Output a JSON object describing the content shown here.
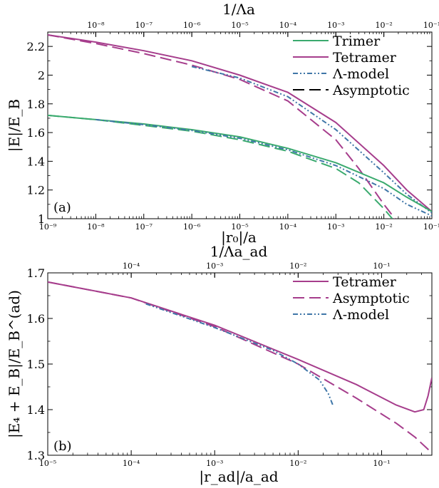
{
  "colors": {
    "trimer": "#3aaa6e",
    "tetramer": "#a63d8c",
    "lambda": "#3f76a8",
    "asymptotic": "#000000"
  },
  "chart_data": [
    {
      "type": "line",
      "panel_label": "(a)",
      "xlabel": "|r₀|/a",
      "ylabel": "|E|/E_B",
      "top_xlabel": "1/Λa",
      "xscale": "log",
      "xlim": [
        1e-09,
        0.1
      ],
      "ylim": [
        1,
        2.3
      ],
      "top_xlim": [
        1e-08,
        1
      ],
      "x_ticks": [
        "10⁻⁹",
        "10⁻⁸",
        "10⁻⁷",
        "10⁻⁶",
        "10⁻⁵",
        "10⁻⁴",
        "10⁻³",
        "10⁻²",
        "10⁻¹"
      ],
      "y_ticks": [
        "1",
        "1.2",
        "1.4",
        "1.6",
        "1.8",
        "2",
        "2.2"
      ],
      "top_ticks": [
        "10⁻⁸",
        "10⁻⁷",
        "10⁻⁶",
        "10⁻⁵",
        "10⁻⁴",
        "10⁻³",
        "10⁻²",
        "10⁻¹"
      ],
      "legend": [
        {
          "label": "Trimer",
          "style": "solid",
          "color": "#3aaa6e"
        },
        {
          "label": "Tetramer",
          "style": "solid",
          "color": "#a63d8c"
        },
        {
          "label": "Λ-model",
          "style": "dashdotdot",
          "color": "#3f76a8"
        },
        {
          "label": "Asymptotic",
          "style": "dashed",
          "color": "#000000"
        }
      ],
      "legend_position": "top-right",
      "series": [
        {
          "group": "tetramer",
          "style": "solid",
          "color": "#a63d8c",
          "x": [
            1e-09,
            1e-08,
            1e-07,
            1e-06,
            1e-05,
            0.0001,
            0.001,
            0.01,
            0.03,
            0.1
          ],
          "y": [
            2.28,
            2.23,
            2.17,
            2.1,
            2.0,
            1.88,
            1.67,
            1.37,
            1.2,
            1.05
          ]
        },
        {
          "group": "tetramer",
          "style": "dashed",
          "color": "#a63d8c",
          "x": [
            1e-09,
            1e-08,
            1e-07,
            1e-06,
            1e-05,
            0.0001,
            0.001,
            0.003,
            0.01,
            0.017
          ],
          "y": [
            2.28,
            2.22,
            2.15,
            2.07,
            1.97,
            1.82,
            1.55,
            1.35,
            1.1,
            1.0
          ]
        },
        {
          "group": "tetramer",
          "style": "dashdotdot",
          "color": "#3f76a8",
          "x": [
            1e-06,
            1e-05,
            0.0001,
            0.001,
            0.01,
            0.03,
            0.1
          ],
          "y": [
            2.06,
            1.98,
            1.85,
            1.62,
            1.32,
            1.17,
            1.04
          ]
        },
        {
          "group": "trimer",
          "style": "solid",
          "color": "#3aaa6e",
          "x": [
            1e-09,
            1e-08,
            1e-07,
            1e-06,
            1e-05,
            0.0001,
            0.001,
            0.01,
            0.03,
            0.1
          ],
          "y": [
            1.72,
            1.69,
            1.66,
            1.62,
            1.57,
            1.49,
            1.39,
            1.25,
            1.15,
            1.05
          ]
        },
        {
          "group": "trimer",
          "style": "dashed",
          "color": "#3aaa6e",
          "x": [
            1e-09,
            1e-08,
            1e-07,
            1e-06,
            1e-05,
            0.0001,
            0.001,
            0.003,
            0.01,
            0.015
          ],
          "y": [
            1.72,
            1.69,
            1.65,
            1.61,
            1.55,
            1.47,
            1.35,
            1.25,
            1.07,
            1.0
          ]
        },
        {
          "group": "trimer",
          "style": "dashdotdot",
          "color": "#3f76a8",
          "x": [
            1e-08,
            1e-07,
            1e-06,
            1e-05,
            0.0001,
            0.001,
            0.01,
            0.03,
            0.1
          ],
          "y": [
            1.69,
            1.655,
            1.615,
            1.56,
            1.48,
            1.37,
            1.21,
            1.1,
            1.02
          ]
        }
      ]
    },
    {
      "type": "line",
      "panel_label": "(b)",
      "xlabel": "|r_ad|/a_ad",
      "ylabel": "|E₄ + E_B|/E_B^(ad)",
      "top_xlabel": "1/Λa_ad",
      "xscale": "log",
      "xlim": [
        1e-05,
        0.4
      ],
      "ylim": [
        1.3,
        1.7
      ],
      "top_xlim": [
        1e-05,
        0.4
      ],
      "x_ticks": [
        "10⁻⁵",
        "10⁻⁴",
        "10⁻³",
        "10⁻²",
        "10⁻¹"
      ],
      "y_ticks": [
        "1.3",
        "1.4",
        "1.5",
        "1.6",
        "1.7"
      ],
      "top_ticks": [
        "10⁻⁴",
        "10⁻³",
        "10⁻²",
        "10⁻¹"
      ],
      "legend": [
        {
          "label": "Tetramer",
          "style": "solid",
          "color": "#a63d8c"
        },
        {
          "label": "Asymptotic",
          "style": "dashed",
          "color": "#a63d8c"
        },
        {
          "label": "Λ-model",
          "style": "dashdotdot",
          "color": "#3f76a8"
        }
      ],
      "legend_position": "top-right",
      "series": [
        {
          "group": "tetramer",
          "style": "solid",
          "color": "#a63d8c",
          "x": [
            1e-05,
            0.0001,
            0.001,
            0.01,
            0.05,
            0.15,
            0.25,
            0.32,
            0.36,
            0.4
          ],
          "y": [
            1.68,
            1.645,
            1.585,
            1.51,
            1.455,
            1.41,
            1.395,
            1.4,
            1.43,
            1.47
          ]
        },
        {
          "group": "tetramer",
          "style": "dashed",
          "color": "#a63d8c",
          "x": [
            1e-05,
            0.0001,
            0.001,
            0.01,
            0.05,
            0.15,
            0.25,
            0.35,
            0.4
          ],
          "y": [
            1.68,
            1.645,
            1.582,
            1.5,
            1.425,
            1.37,
            1.34,
            1.315,
            1.305
          ]
        },
        {
          "group": "lambda",
          "style": "dashdotdot",
          "color": "#3f76a8",
          "x": [
            0.00015,
            0.001,
            0.005,
            0.01,
            0.018,
            0.023,
            0.026
          ],
          "y": [
            1.632,
            1.58,
            1.53,
            1.5,
            1.465,
            1.435,
            1.41
          ]
        }
      ]
    }
  ]
}
